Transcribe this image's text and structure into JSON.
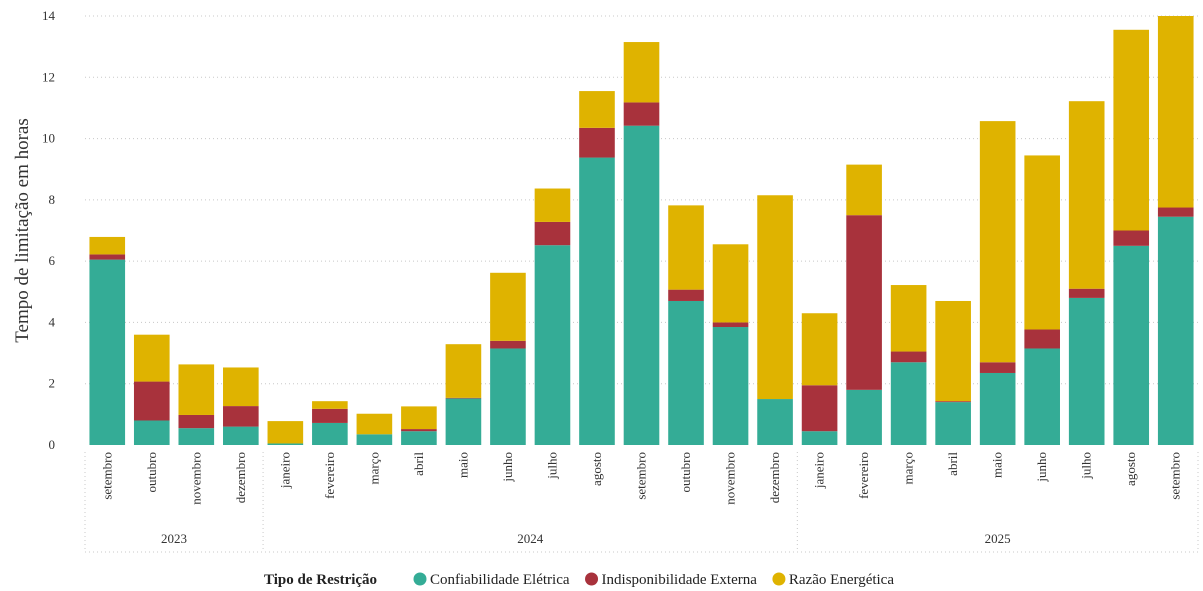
{
  "chart_data": {
    "type": "bar",
    "stacked": true,
    "ylabel": "Tempo de limitação em horas",
    "ylim": [
      0,
      14
    ],
    "yticks": [
      0,
      2,
      4,
      6,
      8,
      10,
      12,
      14
    ],
    "grid": true,
    "categories": [
      "setembro",
      "outubro",
      "novembro",
      "dezembro",
      "janeiro",
      "fevereiro",
      "março",
      "abril",
      "maio",
      "junho",
      "julho",
      "agosto",
      "setembro",
      "outubro",
      "novembro",
      "dezembro",
      "janeiro",
      "fevereiro",
      "março",
      "abril",
      "maio",
      "junho",
      "julho",
      "agosto",
      "setembro"
    ],
    "years": [
      {
        "label": "2023",
        "start": 0,
        "count": 4
      },
      {
        "label": "2024",
        "start": 4,
        "count": 12
      },
      {
        "label": "2025",
        "start": 16,
        "count": 9
      }
    ],
    "series": [
      {
        "name": "Confiabilidade Elétrica",
        "color": "#34ac96",
        "values": [
          6.05,
          0.8,
          0.55,
          0.6,
          0.05,
          0.72,
          0.35,
          0.45,
          1.52,
          3.15,
          6.52,
          9.38,
          10.42,
          4.7,
          3.85,
          1.5,
          0.45,
          1.8,
          2.7,
          1.4,
          2.35,
          3.15,
          4.8,
          6.5,
          7.45
        ]
      },
      {
        "name": "Indisponibilidade Externa",
        "color": "#a8323c",
        "values": [
          0.17,
          1.27,
          0.43,
          0.67,
          0.0,
          0.46,
          0.0,
          0.07,
          0.02,
          0.25,
          0.76,
          0.97,
          0.76,
          0.37,
          0.15,
          0.0,
          1.5,
          5.7,
          0.35,
          0.03,
          0.35,
          0.62,
          0.3,
          0.5,
          0.3
        ]
      },
      {
        "name": "Razão Energética",
        "color": "#dfb300",
        "values": [
          0.57,
          1.53,
          1.65,
          1.26,
          0.73,
          0.25,
          0.67,
          0.74,
          1.75,
          2.22,
          1.09,
          1.2,
          1.97,
          2.75,
          2.55,
          6.65,
          2.35,
          1.65,
          2.17,
          3.27,
          7.87,
          5.68,
          6.12,
          6.55,
          6.25
        ]
      }
    ],
    "legend": {
      "title": "Tipo de Restrição",
      "position": "bottom-center"
    }
  }
}
